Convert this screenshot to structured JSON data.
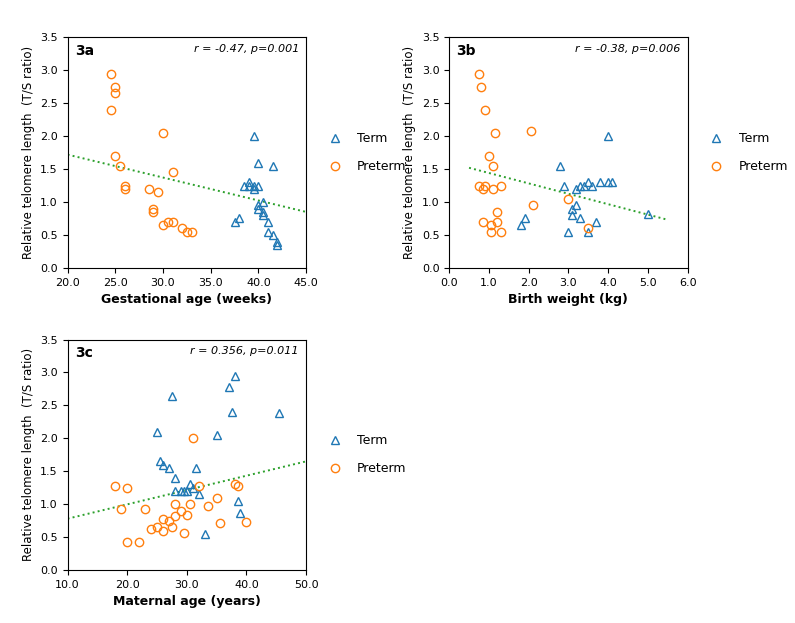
{
  "chart_data": [
    {
      "type": "scatter",
      "xlabel": "Gestational age (weeks)",
      "ylabel": "Relative telomere length  (T/S ratio)",
      "annotations": [
        "3a",
        "r = -0.47, p=0.001"
      ],
      "xlim": [
        20.0,
        45.0
      ],
      "ylim": [
        0.0,
        3.5
      ],
      "xticks": [
        {
          "value": 20.0,
          "label": "20.0"
        },
        {
          "value": 25.0,
          "label": "25.0"
        },
        {
          "value": 30.0,
          "label": "30.0"
        },
        {
          "value": 35.0,
          "label": "35.0"
        },
        {
          "value": 40.0,
          "label": "40.0"
        },
        {
          "value": 45.0,
          "label": "45.0"
        }
      ],
      "yticks": [
        {
          "value": 0.0,
          "label": "0.0"
        },
        {
          "value": 0.5,
          "label": "0.5"
        },
        {
          "value": 1.0,
          "label": "1.0"
        },
        {
          "value": 1.5,
          "label": "1.5"
        },
        {
          "value": 2.0,
          "label": "2.0"
        },
        {
          "value": 2.5,
          "label": "2.5"
        },
        {
          "value": 3.0,
          "label": "3.0"
        },
        {
          "value": 3.5,
          "label": "3.5"
        }
      ],
      "legend": "center left",
      "series": [
        {
          "name": "Term",
          "type": "scatter",
          "marker": "triangle",
          "x": [
            37.5,
            38.0,
            38.5,
            39.0,
            39.0,
            39.5,
            39.5,
            40.0,
            40.0,
            40.0,
            40.5,
            40.5,
            41.0,
            41.0,
            41.5,
            42.0,
            42.0,
            40.0,
            39.5,
            40.5,
            41.5
          ],
          "values": [
            0.7,
            0.75,
            1.25,
            1.25,
            1.3,
            1.25,
            1.2,
            1.25,
            0.95,
            0.9,
            1.0,
            0.8,
            0.7,
            0.55,
            0.5,
            0.4,
            0.35,
            1.6,
            2.0,
            0.85,
            1.55
          ]
        },
        {
          "name": "Preterm",
          "type": "scatter",
          "marker": "circle",
          "x": [
            24.5,
            24.5,
            25.0,
            25.0,
            25.0,
            25.5,
            26.0,
            26.0,
            28.5,
            29.0,
            29.0,
            29.5,
            30.0,
            30.0,
            30.5,
            31.0,
            31.0,
            32.0,
            32.5,
            33.0
          ],
          "values": [
            2.95,
            2.4,
            2.75,
            2.65,
            1.7,
            1.55,
            1.25,
            1.2,
            1.2,
            0.9,
            0.85,
            1.15,
            2.05,
            0.65,
            0.7,
            0.7,
            1.45,
            0.6,
            0.55,
            0.55
          ]
        },
        {
          "type": "line",
          "line_style": "dotted",
          "x": [
            20.0,
            45.0
          ],
          "values": [
            1.72,
            0.85
          ]
        }
      ]
    },
    {
      "type": "scatter",
      "xlabel": "Birth weight (kg)",
      "ylabel": "Relative telomere length  (T/S ratio)",
      "annotations": [
        "3b",
        "r = -0.38, p=0.006"
      ],
      "xlim": [
        0.0,
        6.0
      ],
      "ylim": [
        0.0,
        3.5
      ],
      "xticks": [
        {
          "value": 0.0,
          "label": "0.0"
        },
        {
          "value": 1.0,
          "label": "1.0"
        },
        {
          "value": 2.0,
          "label": "2.0"
        },
        {
          "value": 3.0,
          "label": "3.0"
        },
        {
          "value": 4.0,
          "label": "4.0"
        },
        {
          "value": 5.0,
          "label": "5.0"
        },
        {
          "value": 6.0,
          "label": "6.0"
        }
      ],
      "yticks": [
        {
          "value": 0.0,
          "label": "0.0"
        },
        {
          "value": 0.5,
          "label": "0.5"
        },
        {
          "value": 1.0,
          "label": "1.0"
        },
        {
          "value": 1.5,
          "label": "1.5"
        },
        {
          "value": 2.0,
          "label": "2.0"
        },
        {
          "value": 2.5,
          "label": "2.5"
        },
        {
          "value": 3.0,
          "label": "3.0"
        },
        {
          "value": 3.5,
          "label": "3.5"
        }
      ],
      "legend": "center left",
      "series": [
        {
          "name": "Term",
          "type": "scatter",
          "marker": "triangle",
          "x": [
            1.8,
            1.9,
            2.8,
            2.9,
            3.0,
            3.1,
            3.1,
            3.2,
            3.2,
            3.3,
            3.3,
            3.4,
            3.5,
            3.5,
            3.6,
            3.7,
            3.8,
            4.0,
            4.0,
            4.1,
            5.0
          ],
          "values": [
            0.65,
            0.75,
            1.55,
            1.25,
            0.55,
            0.9,
            0.8,
            0.95,
            1.2,
            0.75,
            1.25,
            1.25,
            0.55,
            1.3,
            1.25,
            0.7,
            1.3,
            1.3,
            2.0,
            1.3,
            0.82
          ]
        },
        {
          "name": "Preterm",
          "type": "scatter",
          "marker": "circle",
          "x": [
            0.75,
            0.75,
            0.8,
            0.85,
            0.85,
            0.9,
            0.9,
            1.0,
            1.05,
            1.05,
            1.1,
            1.1,
            1.15,
            1.2,
            1.2,
            1.3,
            1.3,
            2.05,
            2.1,
            3.0,
            3.5
          ],
          "values": [
            2.95,
            1.25,
            2.75,
            1.2,
            0.7,
            1.25,
            2.4,
            1.7,
            0.65,
            0.55,
            1.55,
            1.2,
            2.05,
            0.7,
            0.85,
            1.25,
            0.55,
            2.08,
            0.96,
            1.05,
            0.6
          ]
        },
        {
          "type": "line",
          "line_style": "dotted",
          "x": [
            0.5,
            5.5
          ],
          "values": [
            1.52,
            0.73
          ]
        }
      ]
    },
    {
      "type": "scatter",
      "xlabel": "Maternal age (years)",
      "ylabel": "Relative telomere length  (T/S ratio)",
      "annotations": [
        "3c",
        "r = 0.356, p=0.011"
      ],
      "xlim": [
        10.0,
        50.0
      ],
      "ylim": [
        0.0,
        3.5
      ],
      "xticks": [
        {
          "value": 10.0,
          "label": "10.0"
        },
        {
          "value": 20.0,
          "label": "20.0"
        },
        {
          "value": 30.0,
          "label": "30.0"
        },
        {
          "value": 40.0,
          "label": "40.0"
        },
        {
          "value": 50.0,
          "label": "50.0"
        }
      ],
      "yticks": [
        {
          "value": 0.0,
          "label": "0.0"
        },
        {
          "value": 0.5,
          "label": "0.5"
        },
        {
          "value": 1.0,
          "label": "1.0"
        },
        {
          "value": 1.5,
          "label": "1.5"
        },
        {
          "value": 2.0,
          "label": "2.0"
        },
        {
          "value": 2.5,
          "label": "2.5"
        },
        {
          "value": 3.0,
          "label": "3.0"
        },
        {
          "value": 3.5,
          "label": "3.5"
        }
      ],
      "legend": "center left",
      "series": [
        {
          "name": "Term",
          "type": "scatter",
          "marker": "triangle",
          "x": [
            25.0,
            25.5,
            26.0,
            27.0,
            27.5,
            28.0,
            28.0,
            29.0,
            29.5,
            30.0,
            30.5,
            31.0,
            31.5,
            32.0,
            33.0,
            35.0,
            37.0,
            37.5,
            38.0,
            38.5,
            39.0,
            45.5
          ],
          "values": [
            2.1,
            1.65,
            1.6,
            1.55,
            2.65,
            1.4,
            1.2,
            1.2,
            1.2,
            1.2,
            1.3,
            1.25,
            1.55,
            1.15,
            0.55,
            2.05,
            2.78,
            2.4,
            2.95,
            1.05,
            0.87,
            2.38
          ]
        },
        {
          "name": "Preterm",
          "type": "scatter",
          "marker": "circle",
          "x": [
            18.0,
            19.0,
            20.0,
            20.0,
            22.0,
            23.0,
            24.0,
            25.0,
            26.0,
            26.0,
            27.0,
            27.5,
            28.0,
            28.0,
            29.0,
            29.5,
            30.0,
            30.5,
            31.0,
            32.0,
            33.5,
            35.0,
            35.5,
            38.0,
            38.5,
            40.0
          ],
          "values": [
            1.27,
            0.93,
            1.25,
            0.43,
            0.42,
            0.92,
            0.62,
            0.65,
            0.6,
            0.77,
            0.75,
            0.65,
            0.82,
            1.0,
            0.9,
            0.57,
            0.83,
            1.0,
            2.0,
            1.28,
            0.98,
            1.1,
            0.72,
            1.3,
            1.28,
            0.73
          ]
        },
        {
          "type": "line",
          "line_style": "dotted",
          "x": [
            10.0,
            50.0
          ],
          "values": [
            0.78,
            1.65
          ]
        }
      ]
    }
  ]
}
